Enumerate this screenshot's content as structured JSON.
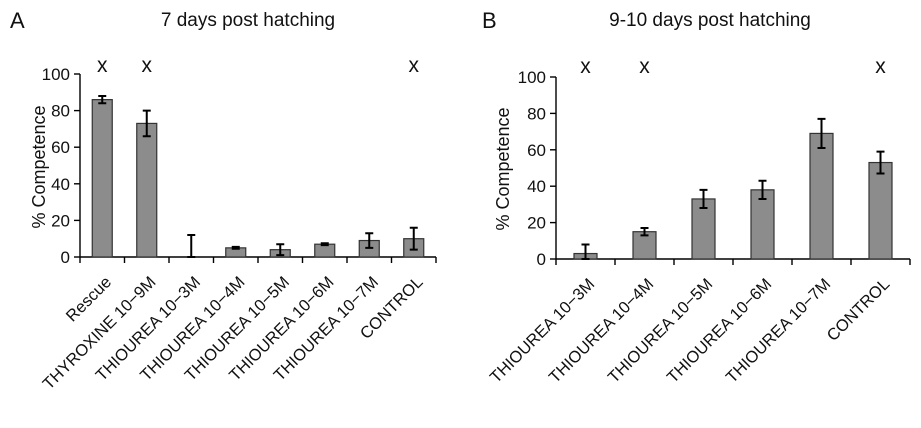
{
  "chart_data": [
    {
      "type": "bar",
      "panel": "A",
      "title": "7 days post hatching",
      "xlabel": "",
      "ylabel": "% Competence",
      "ylim": [
        0,
        100
      ],
      "yticks": [
        0,
        20,
        40,
        60,
        80,
        100
      ],
      "bar_color": "#8c8c8c",
      "categories": [
        "Rescue",
        "THYROXINE 10−9M",
        "THIOUREA 10−3M",
        "THIOUREA 10−4M",
        "THIOUREA 10−5M",
        "THIOUREA 10−6M",
        "THIOUREA 10−7M",
        "CONTROL"
      ],
      "values": [
        86,
        73,
        0,
        5,
        4,
        7,
        9,
        10
      ],
      "errors": [
        2,
        7,
        12,
        0.5,
        3,
        0.5,
        4,
        6
      ],
      "markers": [
        "x",
        "x",
        "",
        "",
        "",
        "",
        "",
        "x"
      ]
    },
    {
      "type": "bar",
      "panel": "B",
      "title": "9-10 days post hatching",
      "xlabel": "",
      "ylabel": "% Competence",
      "ylim": [
        0,
        100
      ],
      "yticks": [
        0,
        20,
        40,
        60,
        80,
        100
      ],
      "bar_color": "#8c8c8c",
      "categories": [
        "THIOUREA 10−3M",
        "THIOUREA 10−4M",
        "THIOUREA 10−5M",
        "THIOUREA 10−6M",
        "THIOUREA 10−7M",
        "CONTROL"
      ],
      "values": [
        3,
        15,
        33,
        38,
        69,
        53
      ],
      "errors": [
        5,
        2,
        5,
        5,
        8,
        6
      ],
      "markers": [
        "x",
        "x",
        "",
        "",
        "",
        "x"
      ]
    }
  ]
}
